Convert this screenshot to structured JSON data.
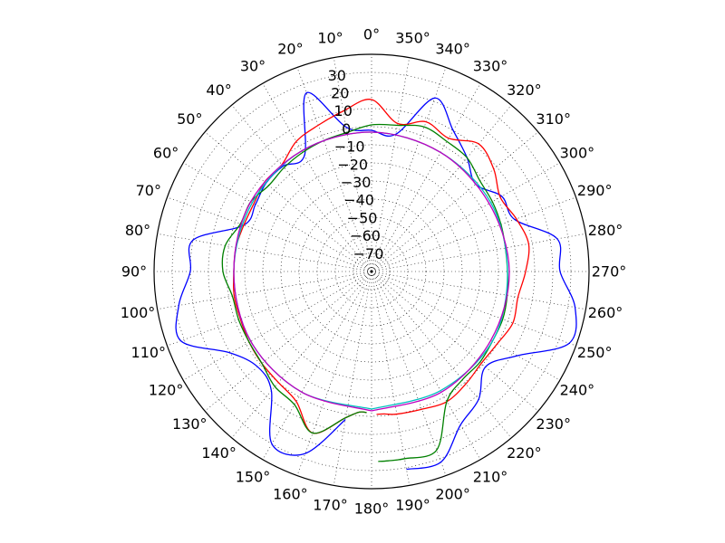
{
  "chart_data": {
    "type": "line",
    "projection": "polar",
    "title": "",
    "theta_zero_location": "top",
    "theta_direction": "counterclockwise",
    "theta_unit": "°",
    "theta_tick_labels": [
      "0°",
      "10°",
      "20°",
      "30°",
      "40°",
      "50°",
      "60°",
      "70°",
      "80°",
      "90°",
      "100°",
      "110°",
      "120°",
      "130°",
      "140°",
      "150°",
      "160°",
      "170°",
      "180°",
      "190°",
      "200°",
      "210°",
      "220°",
      "230°",
      "240°",
      "250°",
      "260°",
      "270°",
      "280°",
      "290°",
      "300°",
      "310°",
      "320°",
      "330°",
      "340°",
      "350°"
    ],
    "r_tick_labels": [
      "−70",
      "−60",
      "−50",
      "−40",
      "−30",
      "−20",
      "−10",
      "0",
      "10",
      "20",
      "30"
    ],
    "r_tick_values": [
      -70,
      -60,
      -50,
      -40,
      -30,
      -20,
      -10,
      0,
      10,
      20,
      30
    ],
    "r_tick_label_angle": 10,
    "rlim": [
      -80,
      40
    ],
    "grid": true,
    "legend": "none",
    "series": [
      {
        "color": "#0000ff",
        "theta": [
          -170,
          -160,
          -150,
          -140,
          -130,
          -120,
          -110,
          -100,
          -90,
          -80,
          -70,
          -60,
          -50,
          -40,
          -30,
          -20,
          -10,
          0,
          10,
          20,
          30,
          40,
          50,
          60,
          70,
          80,
          90,
          100,
          110,
          120,
          130,
          140,
          150,
          160,
          170
        ],
        "r": [
          31,
          32,
          18,
          12,
          2,
          13,
          36,
          34,
          24,
          24,
          4,
          3,
          -5,
          2,
          10,
          22,
          -3,
          -2,
          1,
          25,
          -6,
          -4,
          -4,
          -6,
          -5,
          20,
          20,
          28,
          32,
          10,
          2,
          6,
          30,
          27,
          3
        ]
      },
      {
        "color": "#ff0000",
        "theta": [
          -178,
          -175,
          -170,
          -160,
          -150,
          -140,
          -130,
          -120,
          -110,
          -100,
          -90,
          -80,
          -70,
          -60,
          -50,
          -40,
          -30,
          -20,
          -10,
          0,
          10,
          20,
          30,
          40,
          50,
          60,
          70,
          80,
          90,
          100,
          110,
          120,
          130,
          140,
          150,
          160,
          170,
          175,
          178
        ],
        "r": [
          -1,
          -1,
          0,
          1,
          3,
          1,
          -1,
          0,
          3,
          2,
          5,
          8,
          5,
          2,
          8,
          12,
          5,
          8,
          3,
          15,
          10,
          6,
          3,
          -3,
          -3,
          -5,
          -5,
          -4,
          -4,
          -3,
          -3,
          -2,
          -1,
          0,
          3,
          15,
          2,
          -2,
          -2
        ]
      },
      {
        "color": "#008000",
        "theta": [
          -178,
          -175,
          -170,
          -160,
          -150,
          -140,
          -130,
          -120,
          -110,
          -100,
          -90,
          -80,
          -70,
          -60,
          -50,
          -40,
          -30,
          -20,
          -10,
          0,
          10,
          20,
          30,
          40,
          50,
          60,
          70,
          80,
          90,
          100,
          110,
          120,
          130,
          140,
          150,
          160,
          170,
          175,
          178
        ],
        "r": [
          25,
          25,
          25,
          25,
          3,
          -2,
          -2,
          -3,
          -3,
          -4,
          -5,
          -5,
          -4,
          -3,
          -2,
          2,
          3,
          5,
          2,
          1,
          -2,
          -3,
          -4,
          -5,
          -6,
          -3,
          -3,
          2,
          2,
          -2,
          -2,
          -2,
          -1,
          3,
          5,
          15,
          2,
          -2,
          -2
        ]
      },
      {
        "color": "#00bfbf",
        "theta": [
          -180,
          -150,
          -120,
          -90,
          -60,
          -30,
          0,
          30,
          60,
          90,
          120,
          150,
          180
        ],
        "r": [
          -4,
          -4,
          -3,
          -5,
          -4,
          -4,
          -3,
          -3,
          -4,
          -4,
          -3,
          -3,
          -4
        ]
      },
      {
        "color": "#bf00bf",
        "theta": [
          -180,
          -150,
          -120,
          -90,
          -60,
          -30,
          0,
          30,
          60,
          90,
          120,
          150,
          180
        ],
        "r": [
          -3,
          -3,
          -4,
          -4,
          -5,
          -4,
          -3,
          -3,
          -3,
          -4,
          -3,
          -3,
          -3
        ]
      }
    ]
  }
}
